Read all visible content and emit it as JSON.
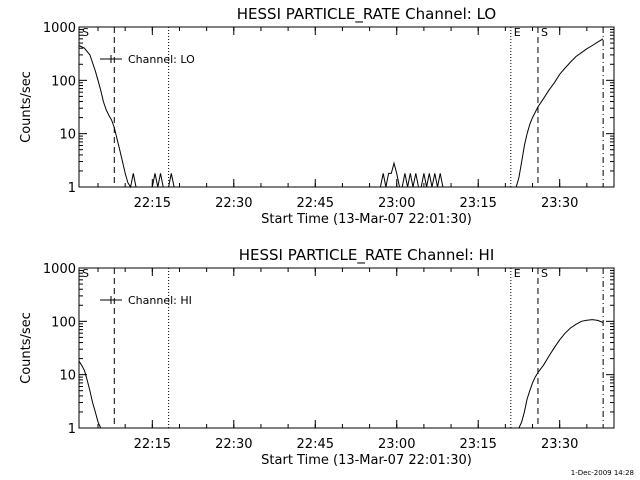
{
  "footer_stamp": "1-Dec-2009 14:28",
  "chart_data": [
    {
      "type": "line",
      "title": "HESSI PARTICLE_RATE Channel: LO",
      "xlabel": "Start Time (13-Mar-07 22:01:30)",
      "ylabel": "Counts/sec",
      "yscale": "log",
      "ylim": [
        1,
        1000
      ],
      "xlim": [
        "22:01:30",
        "23:40:00"
      ],
      "x_ticks": [
        "22:15",
        "22:30",
        "22:45",
        "23:00",
        "23:15",
        "23:30"
      ],
      "y_ticks": [
        "1",
        "10",
        "100",
        "1000"
      ],
      "legend": {
        "label": "Channel: LO",
        "position": "top-left"
      },
      "markers": [
        {
          "label": "S",
          "time": "22:01:30",
          "style": "dashed"
        },
        {
          "label": "",
          "time": "22:08:00",
          "style": "dashed"
        },
        {
          "label": "",
          "time": "22:18:00",
          "style": "dotted"
        },
        {
          "label": "E",
          "time": "23:21:00",
          "style": "dotted"
        },
        {
          "label": "S",
          "time": "23:26:00",
          "style": "dashed"
        },
        {
          "label": "",
          "time": "23:38:00",
          "style": "dash-dot"
        }
      ],
      "series": [
        {
          "x": [
            "22:01:30",
            "22:02:30",
            "22:03:30",
            "22:04:30",
            "22:05:00",
            "22:05:30",
            "22:06:00",
            "22:06:30",
            "22:07:00",
            "22:07:30",
            "22:08:00",
            "22:08:30",
            "22:09:00",
            "22:09:30",
            "22:10:00",
            "22:10:30",
            "22:11:00",
            "22:11:30",
            "22:12:00",
            "22:12:30",
            "22:13:00",
            "22:13:30",
            "22:14:00",
            "22:14:30",
            "22:15:00",
            "22:15:30",
            "22:16:00",
            "22:16:30",
            "22:17:00",
            "22:17:30",
            "22:18:00",
            "22:18:30",
            "22:19:00",
            "22:19:30",
            "22:20:00",
            "22:57:00",
            "22:57:30",
            "22:58:00",
            "22:58:30",
            "22:59:00",
            "22:59:30",
            "23:00:00",
            "23:00:30",
            "23:01:00",
            "23:01:30",
            "23:02:00",
            "23:02:30",
            "23:03:00",
            "23:03:30",
            "23:04:00",
            "23:04:30",
            "23:05:00",
            "23:05:30",
            "23:06:00",
            "23:06:30",
            "23:07:00",
            "23:07:30",
            "23:08:00",
            "23:08:30",
            "23:09:00",
            "23:22:00",
            "23:22:30",
            "23:23:00",
            "23:23:30",
            "23:24:00",
            "23:24:30",
            "23:25:00",
            "23:25:30",
            "23:26:00",
            "23:27:00",
            "23:28:00",
            "23:29:00",
            "23:30:00",
            "23:31:00",
            "23:32:00",
            "23:33:00",
            "23:34:00",
            "23:35:00",
            "23:36:00",
            "23:37:00",
            "23:38:00"
          ],
          "values": [
            450,
            400,
            300,
            150,
            100,
            65,
            40,
            28,
            22,
            18,
            13,
            8,
            5,
            3,
            1.8,
            1.2,
            1,
            1.8,
            1,
            1,
            1,
            1,
            1,
            1,
            1,
            1.8,
            1,
            1.8,
            1,
            1,
            1,
            1.8,
            1,
            1,
            1,
            1,
            1.8,
            1,
            1.8,
            1.8,
            2.8,
            1.8,
            1,
            1,
            1.8,
            1,
            1.8,
            1,
            1.8,
            1,
            1,
            1.8,
            1,
            1.8,
            1,
            1.8,
            1,
            1.8,
            1,
            1,
            1,
            1.5,
            3,
            6,
            10,
            15,
            20,
            25,
            32,
            45,
            65,
            90,
            130,
            170,
            220,
            280,
            330,
            390,
            450,
            520,
            600
          ]
        }
      ]
    },
    {
      "type": "line",
      "title": "HESSI PARTICLE_RATE Channel: HI",
      "xlabel": "Start Time (13-Mar-07 22:01:30)",
      "ylabel": "Counts/sec",
      "yscale": "log",
      "ylim": [
        1,
        1000
      ],
      "xlim": [
        "22:01:30",
        "23:40:00"
      ],
      "x_ticks": [
        "22:15",
        "22:30",
        "22:45",
        "23:00",
        "23:15",
        "23:30"
      ],
      "y_ticks": [
        "1",
        "10",
        "100",
        "1000"
      ],
      "legend": {
        "label": "Channel: HI",
        "position": "top-left"
      },
      "markers": [
        {
          "label": "S",
          "time": "22:01:30",
          "style": "dashed"
        },
        {
          "label": "",
          "time": "22:08:00",
          "style": "dashed"
        },
        {
          "label": "",
          "time": "22:18:00",
          "style": "dotted"
        },
        {
          "label": "E",
          "time": "23:21:00",
          "style": "dotted"
        },
        {
          "label": "S",
          "time": "23:26:00",
          "style": "dashed"
        },
        {
          "label": "",
          "time": "23:38:00",
          "style": "dash-dot"
        }
      ],
      "series": [
        {
          "x": [
            "22:01:30",
            "22:02:00",
            "22:02:30",
            "22:03:00",
            "22:03:30",
            "22:04:00",
            "22:04:30",
            "22:05:00",
            "22:05:30",
            "23:22:30",
            "23:23:00",
            "23:23:30",
            "23:24:00",
            "23:24:30",
            "23:25:00",
            "23:25:30",
            "23:26:00",
            "23:27:00",
            "23:28:00",
            "23:29:00",
            "23:30:00",
            "23:31:00",
            "23:32:00",
            "23:33:00",
            "23:34:00",
            "23:35:00",
            "23:36:00",
            "23:37:00",
            "23:38:00"
          ],
          "values": [
            18,
            15,
            12,
            8,
            5,
            3,
            2,
            1.3,
            1,
            1,
            1.3,
            2,
            3.5,
            5,
            7,
            9,
            11,
            15,
            22,
            32,
            45,
            60,
            75,
            88,
            100,
            105,
            108,
            104,
            95
          ]
        }
      ]
    }
  ]
}
